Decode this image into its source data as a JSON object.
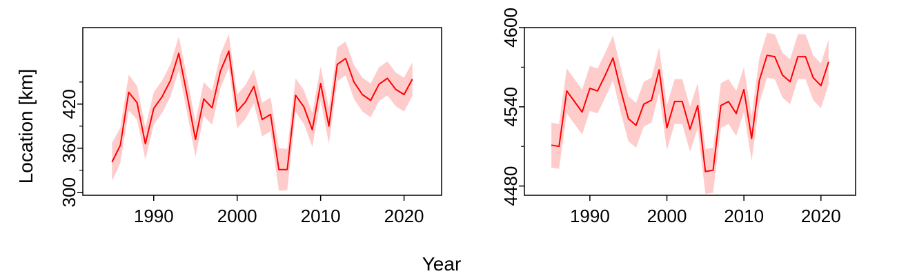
{
  "figure": {
    "shared_xlabel": "Year",
    "shared_ylabel": "Location [km]"
  },
  "colors": {
    "line": "#ff0000",
    "band": "#ffcccc",
    "axis": "#000000"
  },
  "chart_data": [
    {
      "type": "line",
      "title": "",
      "xlabel": "Year",
      "ylabel": "Location [km]",
      "xlim": [
        1981.5,
        2024.5
      ],
      "ylim": [
        296,
        524
      ],
      "xticks": [
        1990,
        2000,
        2010,
        2020
      ],
      "yticks": [
        300,
        360,
        420
      ],
      "yminor_ticks": [
        330,
        390,
        450
      ],
      "grid": false,
      "x": [
        1985,
        1986,
        1987,
        1988,
        1989,
        1990,
        1991,
        1992,
        1993,
        1994,
        1995,
        1996,
        1997,
        1998,
        1999,
        2000,
        2001,
        2002,
        2003,
        2004,
        2005,
        2006,
        2007,
        2008,
        2009,
        2010,
        2011,
        2012,
        2013,
        2014,
        2015,
        2016,
        2017,
        2018,
        2019,
        2020,
        2021
      ],
      "series": [
        {
          "values": [
            341,
            364,
            436,
            422,
            366,
            414,
            430,
            452,
            489,
            432,
            372,
            427,
            415,
            465,
            492,
            410,
            423,
            444,
            399,
            406,
            331,
            331,
            432,
            416,
            385,
            448,
            390,
            474,
            482,
            450,
            433,
            425,
            447,
            455,
            440,
            433,
            454
          ],
          "lower": [
            315,
            340,
            411,
            399,
            344,
            392,
            408,
            430,
            466,
            408,
            348,
            404,
            392,
            442,
            469,
            387,
            400,
            421,
            376,
            383,
            302,
            303,
            409,
            393,
            362,
            425,
            366,
            451,
            459,
            427,
            410,
            402,
            424,
            432,
            417,
            410,
            431
          ],
          "upper": [
            367,
            388,
            460,
            445,
            388,
            436,
            452,
            474,
            512,
            456,
            396,
            450,
            438,
            488,
            515,
            433,
            446,
            467,
            422,
            429,
            360,
            359,
            455,
            439,
            408,
            471,
            414,
            497,
            505,
            473,
            456,
            448,
            470,
            478,
            463,
            456,
            477
          ]
        }
      ]
    },
    {
      "type": "line",
      "title": "",
      "xlabel": "Year",
      "ylabel": "",
      "xlim": [
        1981.5,
        2024.5
      ],
      "ylim": [
        4473,
        4600
      ],
      "xticks": [
        1990,
        2000,
        2010,
        2020
      ],
      "yticks": [
        4480,
        4540,
        4600
      ],
      "yminor_ticks": [
        4510,
        4570
      ],
      "grid": false,
      "x": [
        1985,
        1986,
        1987,
        1988,
        1989,
        1990,
        1991,
        1992,
        1993,
        1994,
        1995,
        1996,
        1997,
        1998,
        1999,
        2000,
        2001,
        2002,
        2003,
        2004,
        2005,
        2006,
        2007,
        2008,
        2009,
        2010,
        2011,
        2012,
        2013,
        2014,
        2015,
        2016,
        2017,
        2018,
        2019,
        2020,
        2021
      ],
      "series": [
        {
          "values": [
            4511,
            4510,
            4552,
            4544,
            4536,
            4554,
            4552,
            4564,
            4577,
            4553,
            4531,
            4526,
            4542,
            4545,
            4568,
            4524,
            4544,
            4544,
            4523,
            4541,
            4491,
            4492,
            4541,
            4544,
            4535,
            4553,
            4516,
            4560,
            4579,
            4578,
            4564,
            4559,
            4578,
            4578,
            4562,
            4556,
            4574
          ],
          "lower": [
            4494,
            4493,
            4535,
            4527,
            4519,
            4537,
            4535,
            4547,
            4560,
            4536,
            4514,
            4509,
            4525,
            4528,
            4551,
            4507,
            4527,
            4527,
            4506,
            4524,
            4474,
            4475,
            4524,
            4527,
            4518,
            4536,
            4499,
            4543,
            4562,
            4561,
            4547,
            4542,
            4561,
            4561,
            4545,
            4539,
            4557
          ],
          "upper": [
            4528,
            4527,
            4569,
            4561,
            4553,
            4571,
            4569,
            4581,
            4594,
            4570,
            4548,
            4543,
            4559,
            4562,
            4585,
            4541,
            4561,
            4561,
            4540,
            4558,
            4508,
            4509,
            4558,
            4561,
            4552,
            4570,
            4533,
            4577,
            4596,
            4595,
            4581,
            4576,
            4595,
            4595,
            4579,
            4573,
            4591
          ]
        }
      ]
    }
  ]
}
